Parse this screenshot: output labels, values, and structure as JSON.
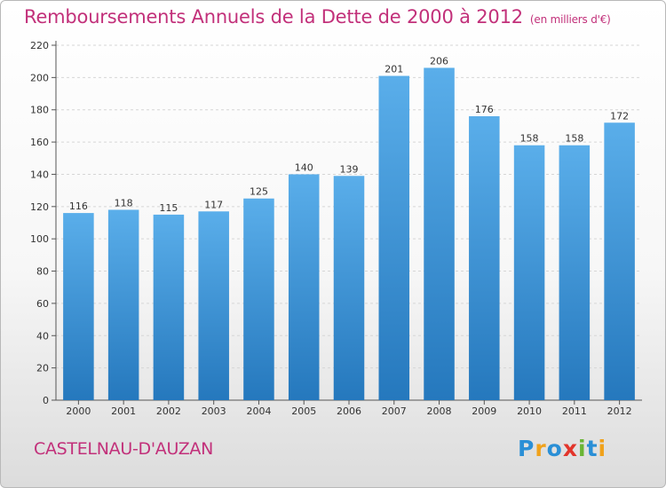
{
  "header": {
    "title": "Remboursements Annuels de la Dette de 2000 à 2012",
    "unit": "(en milliers d'€)"
  },
  "commune": "CASTELNAU-D'AUZAN",
  "logo": {
    "text": "Proxiti",
    "letters": [
      {
        "ch": "P",
        "color": "#2a8fd6"
      },
      {
        "ch": "r",
        "color": "#f0a21c"
      },
      {
        "ch": "o",
        "color": "#2a8fd6"
      },
      {
        "ch": "x",
        "color": "#e2352b"
      },
      {
        "ch": "i",
        "color": "#6ab534"
      },
      {
        "ch": "t",
        "color": "#2a8fd6"
      },
      {
        "ch": "i",
        "color": "#f0a21c"
      }
    ]
  },
  "colors": {
    "bar_top": "#5aaeea",
    "bar_bottom": "#2578bd",
    "grid": "#d6d6d6",
    "title": "#c2307a"
  },
  "chart_data": {
    "type": "bar",
    "title": "Remboursements Annuels de la Dette de 2000 à 2012",
    "subtitle": "(en milliers d'€)",
    "categories": [
      "2000",
      "2001",
      "2002",
      "2003",
      "2004",
      "2005",
      "2006",
      "2007",
      "2008",
      "2009",
      "2010",
      "2011",
      "2012"
    ],
    "values": [
      116,
      118,
      115,
      117,
      125,
      140,
      139,
      201,
      206,
      176,
      158,
      158,
      172
    ],
    "ylim": [
      0,
      220
    ],
    "yticks": [
      0,
      20,
      40,
      60,
      80,
      100,
      120,
      140,
      160,
      180,
      200,
      220
    ],
    "grid": true,
    "legend": "none"
  }
}
